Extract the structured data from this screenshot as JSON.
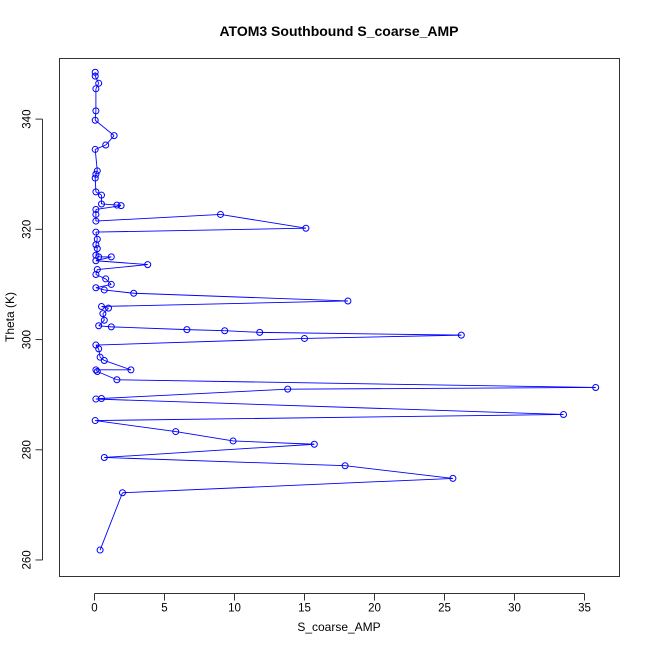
{
  "chart_data": {
    "type": "line",
    "title": "ATOM3 Southbound S_coarse_AMP",
    "xlabel": "S_coarse_AMP",
    "ylabel": "Theta (K)",
    "xlim": [
      -2.5,
      37.5
    ],
    "ylim": [
      257,
      351
    ],
    "x_ticks": [
      0,
      5,
      10,
      15,
      20,
      25,
      30,
      35
    ],
    "y_ticks": [
      260,
      280,
      300,
      320,
      340
    ],
    "x_tick_labels": [
      "0",
      "5",
      "10",
      "15",
      "20",
      "25",
      "30",
      "35"
    ],
    "y_tick_labels": [
      "260",
      "280",
      "300",
      "320",
      "340"
    ],
    "grid": false,
    "legend": "none",
    "series": [
      {
        "color": "#0000ff",
        "marker": "open-circle",
        "points": [
          [
            0.05,
            348.5
          ],
          [
            0.05,
            347.8
          ],
          [
            0.3,
            346.5
          ],
          [
            0.1,
            345.5
          ],
          [
            0.1,
            341.5
          ],
          [
            0.05,
            339.8
          ],
          [
            1.4,
            337.0
          ],
          [
            0.8,
            335.3
          ],
          [
            0.05,
            334.5
          ],
          [
            0.2,
            330.6
          ],
          [
            0.1,
            330.0
          ],
          [
            0.05,
            329.3
          ],
          [
            0.1,
            326.8
          ],
          [
            0.5,
            326.2
          ],
          [
            0.5,
            324.6
          ],
          [
            1.6,
            324.4
          ],
          [
            1.9,
            324.3
          ],
          [
            0.1,
            323.6
          ],
          [
            0.1,
            322.7
          ],
          [
            0.1,
            321.5
          ],
          [
            9.0,
            322.7
          ],
          [
            15.1,
            320.2
          ],
          [
            0.1,
            319.5
          ],
          [
            0.2,
            318.2
          ],
          [
            0.1,
            317.2
          ],
          [
            0.2,
            316.5
          ],
          [
            0.1,
            315.3
          ],
          [
            0.3,
            315.0
          ],
          [
            1.2,
            315.0
          ],
          [
            0.1,
            314.3
          ],
          [
            3.8,
            313.6
          ],
          [
            0.2,
            312.7
          ],
          [
            0.1,
            311.8
          ],
          [
            0.8,
            311.0
          ],
          [
            1.2,
            310.0
          ],
          [
            0.1,
            309.4
          ],
          [
            0.7,
            309.0
          ],
          [
            2.8,
            308.4
          ],
          [
            18.1,
            307.0
          ],
          [
            0.5,
            306.0
          ],
          [
            1.0,
            305.7
          ],
          [
            0.6,
            304.7
          ],
          [
            0.7,
            303.5
          ],
          [
            0.3,
            302.5
          ],
          [
            1.2,
            302.3
          ],
          [
            6.6,
            301.8
          ],
          [
            9.3,
            301.6
          ],
          [
            11.8,
            301.3
          ],
          [
            26.2,
            300.8
          ],
          [
            15.0,
            300.2
          ],
          [
            0.1,
            299.0
          ],
          [
            0.3,
            298.3
          ],
          [
            0.4,
            296.8
          ],
          [
            0.7,
            296.2
          ],
          [
            2.6,
            294.5
          ],
          [
            0.1,
            294.5
          ],
          [
            0.2,
            294.2
          ],
          [
            1.6,
            292.7
          ],
          [
            35.8,
            291.3
          ],
          [
            13.8,
            291.0
          ],
          [
            0.5,
            289.3
          ],
          [
            0.1,
            289.2
          ],
          [
            33.5,
            286.4
          ],
          [
            0.05,
            285.3
          ],
          [
            5.8,
            283.3
          ],
          [
            9.9,
            281.6
          ],
          [
            15.7,
            281.0
          ],
          [
            0.7,
            278.6
          ],
          [
            17.9,
            277.1
          ],
          [
            25.6,
            274.8
          ],
          [
            2.0,
            272.2
          ],
          [
            0.4,
            261.8
          ]
        ]
      }
    ]
  }
}
